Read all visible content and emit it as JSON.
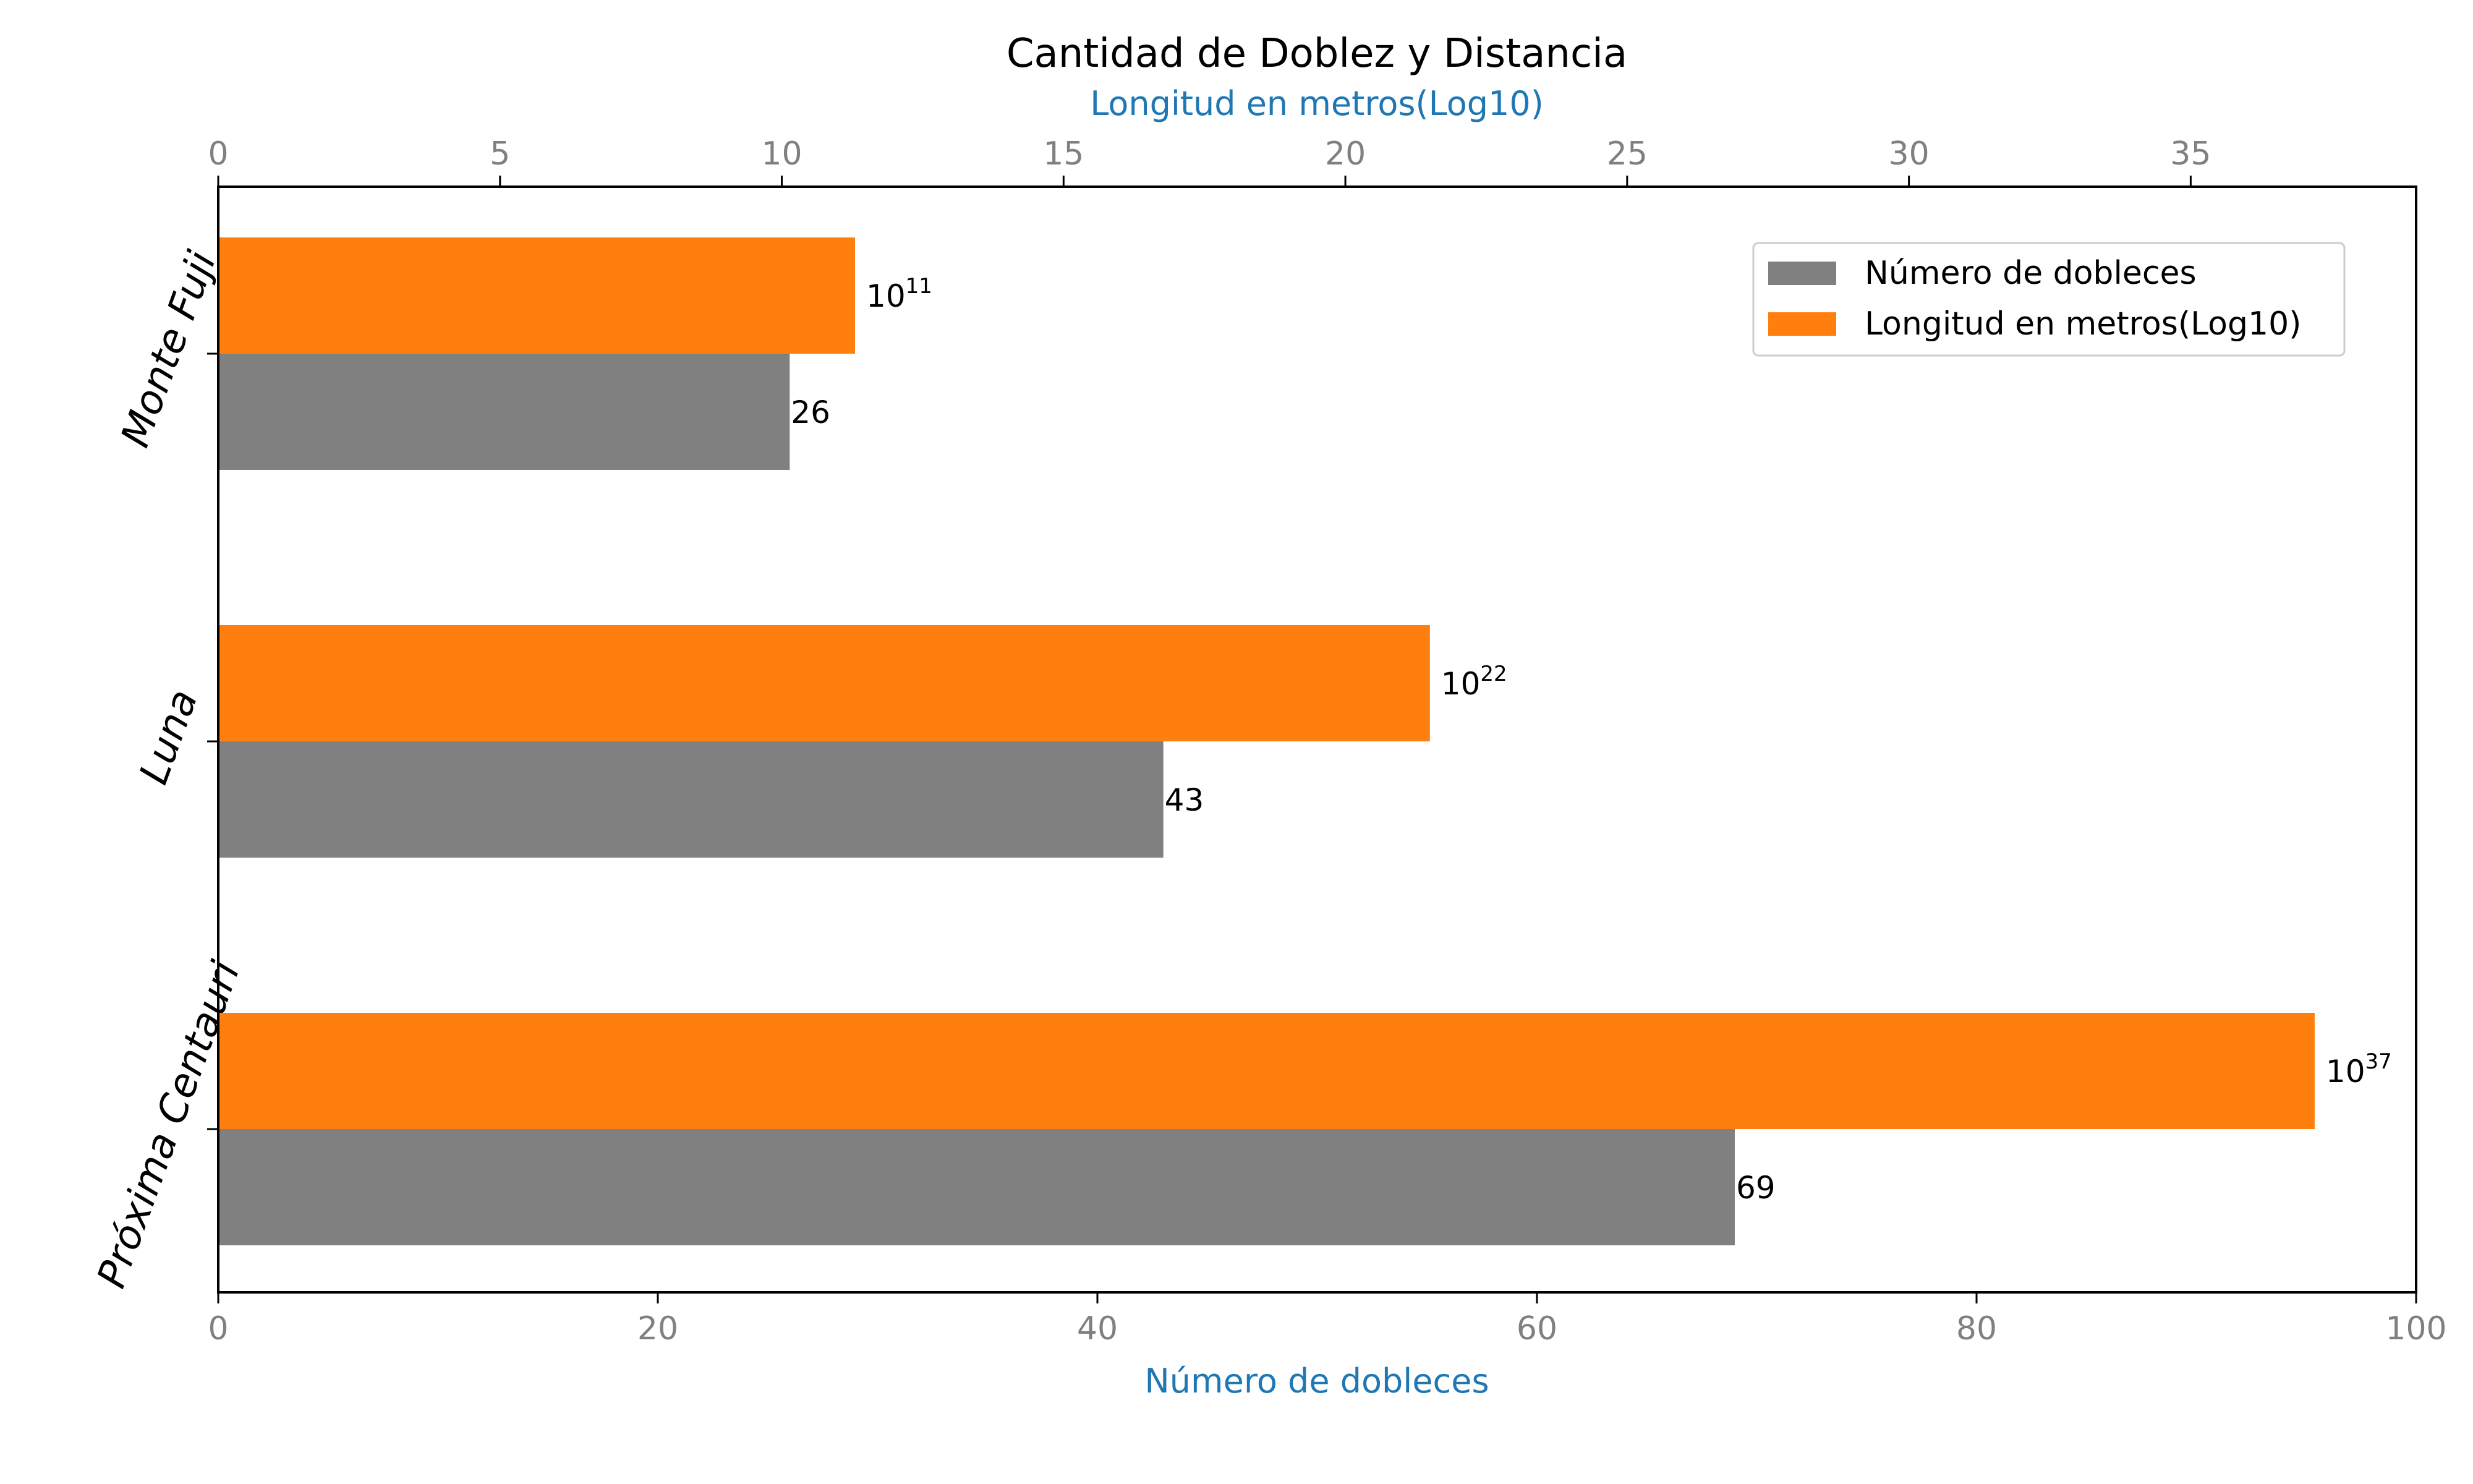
{
  "chart_data": {
    "type": "bar",
    "orientation": "horizontal",
    "title": "Cantidad de Doblez y Distancia",
    "categories": [
      "Monte Fuji",
      "Luna",
      "Próxima Centauri"
    ],
    "series": [
      {
        "name": "Número de dobleces",
        "axis": "bottom",
        "values": [
          26,
          43,
          69
        ],
        "labels": [
          "26",
          "43",
          "69"
        ],
        "color": "#808080"
      },
      {
        "name": "Longitud en metros(Log10)",
        "axis": "top",
        "values": [
          11.3,
          21.5,
          37.2
        ],
        "label_base": "10",
        "label_exponents": [
          "11",
          "22",
          "37"
        ],
        "color": "#ff7f0e"
      }
    ],
    "xaxis_bottom": {
      "label": "Número de dobleces",
      "range": [
        0,
        100
      ],
      "ticks": [
        0,
        20,
        40,
        60,
        80,
        100
      ]
    },
    "xaxis_top": {
      "label": "Longitud en metros(Log10)",
      "range": [
        0,
        39
      ],
      "ticks": [
        0,
        5,
        10,
        15,
        20,
        25,
        30,
        35
      ]
    },
    "legend_position": "top-right",
    "grid": false,
    "axis_label_color": "#1f77b4",
    "tick_label_color": "#808080"
  }
}
